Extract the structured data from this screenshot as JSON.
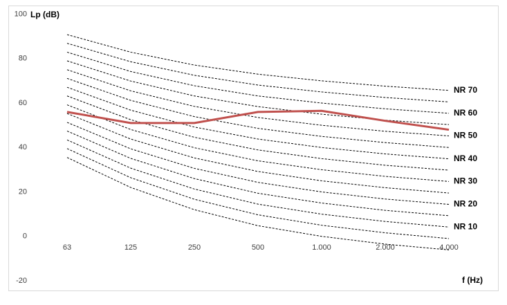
{
  "chart_data": {
    "type": "line",
    "y_label": "Lp (dB)",
    "x_label": "f (Hz)",
    "categories": [
      "63",
      "125",
      "250",
      "500",
      "1.000",
      "2.000",
      "4.000"
    ],
    "ylim": [
      -20,
      100
    ],
    "yticks": [
      -20,
      0,
      20,
      40,
      60,
      80,
      100
    ],
    "grid": false,
    "series": [
      {
        "color": "#000000",
        "dashed": true,
        "values": [
          35.5,
          22,
          12,
          4.8,
          0,
          -3.5,
          -6.1
        ]
      },
      {
        "color": "#000000",
        "dashed": true,
        "values": [
          39.5,
          26.4,
          16.7,
          9.7,
          5,
          1.6,
          -1
        ]
      },
      {
        "name": "NR 10",
        "color": "#000000",
        "dashed": true,
        "values": [
          43.4,
          30.7,
          21.3,
          14.5,
          10,
          6.7,
          4.2
        ]
      },
      {
        "color": "#000000",
        "dashed": true,
        "values": [
          47.4,
          35.1,
          26,
          19.4,
          15,
          11.7,
          9.3
        ]
      },
      {
        "name": "NR 20",
        "color": "#000000",
        "dashed": true,
        "values": [
          51.3,
          39.4,
          30.6,
          24.3,
          20,
          16.8,
          14.4
        ]
      },
      {
        "color": "#000000",
        "dashed": true,
        "values": [
          55.3,
          43.8,
          35.3,
          29.2,
          25,
          21.9,
          19.5
        ]
      },
      {
        "name": "NR 30",
        "color": "#000000",
        "dashed": true,
        "values": [
          59.2,
          48.1,
          39.9,
          34,
          30,
          27,
          24.7
        ]
      },
      {
        "color": "#000000",
        "dashed": true,
        "values": [
          63.2,
          52.5,
          44.6,
          38.9,
          35,
          32,
          29.8
        ]
      },
      {
        "name": "NR 40",
        "color": "#000000",
        "dashed": true,
        "values": [
          67.1,
          56.8,
          49.2,
          43.8,
          40,
          37.1,
          34.9
        ]
      },
      {
        "color": "#000000",
        "dashed": true,
        "values": [
          71.1,
          61.2,
          53.9,
          48.6,
          45,
          42.2,
          40
        ]
      },
      {
        "name": "NR 50",
        "color": "#000000",
        "dashed": true,
        "values": [
          75,
          65.5,
          58.5,
          53.5,
          50,
          47.3,
          45.2
        ]
      },
      {
        "color": "#000000",
        "dashed": true,
        "values": [
          79,
          69.9,
          63.2,
          58.4,
          55,
          52.3,
          50.3
        ]
      },
      {
        "name": "NR 60",
        "color": "#000000",
        "dashed": true,
        "values": [
          82.9,
          74.2,
          67.8,
          63.2,
          60,
          57.4,
          55.4
        ]
      },
      {
        "color": "#000000",
        "dashed": true,
        "values": [
          86.9,
          78.6,
          72.5,
          68.1,
          65,
          62.5,
          60.5
        ]
      },
      {
        "name": "NR 70",
        "color": "#000000",
        "dashed": true,
        "values": [
          90.8,
          82.9,
          77.1,
          73,
          70,
          67.6,
          65.7
        ]
      },
      {
        "color": "#c0504d",
        "dashed": false,
        "values": [
          56,
          51,
          51,
          56,
          56.5,
          52,
          48
        ]
      }
    ]
  }
}
